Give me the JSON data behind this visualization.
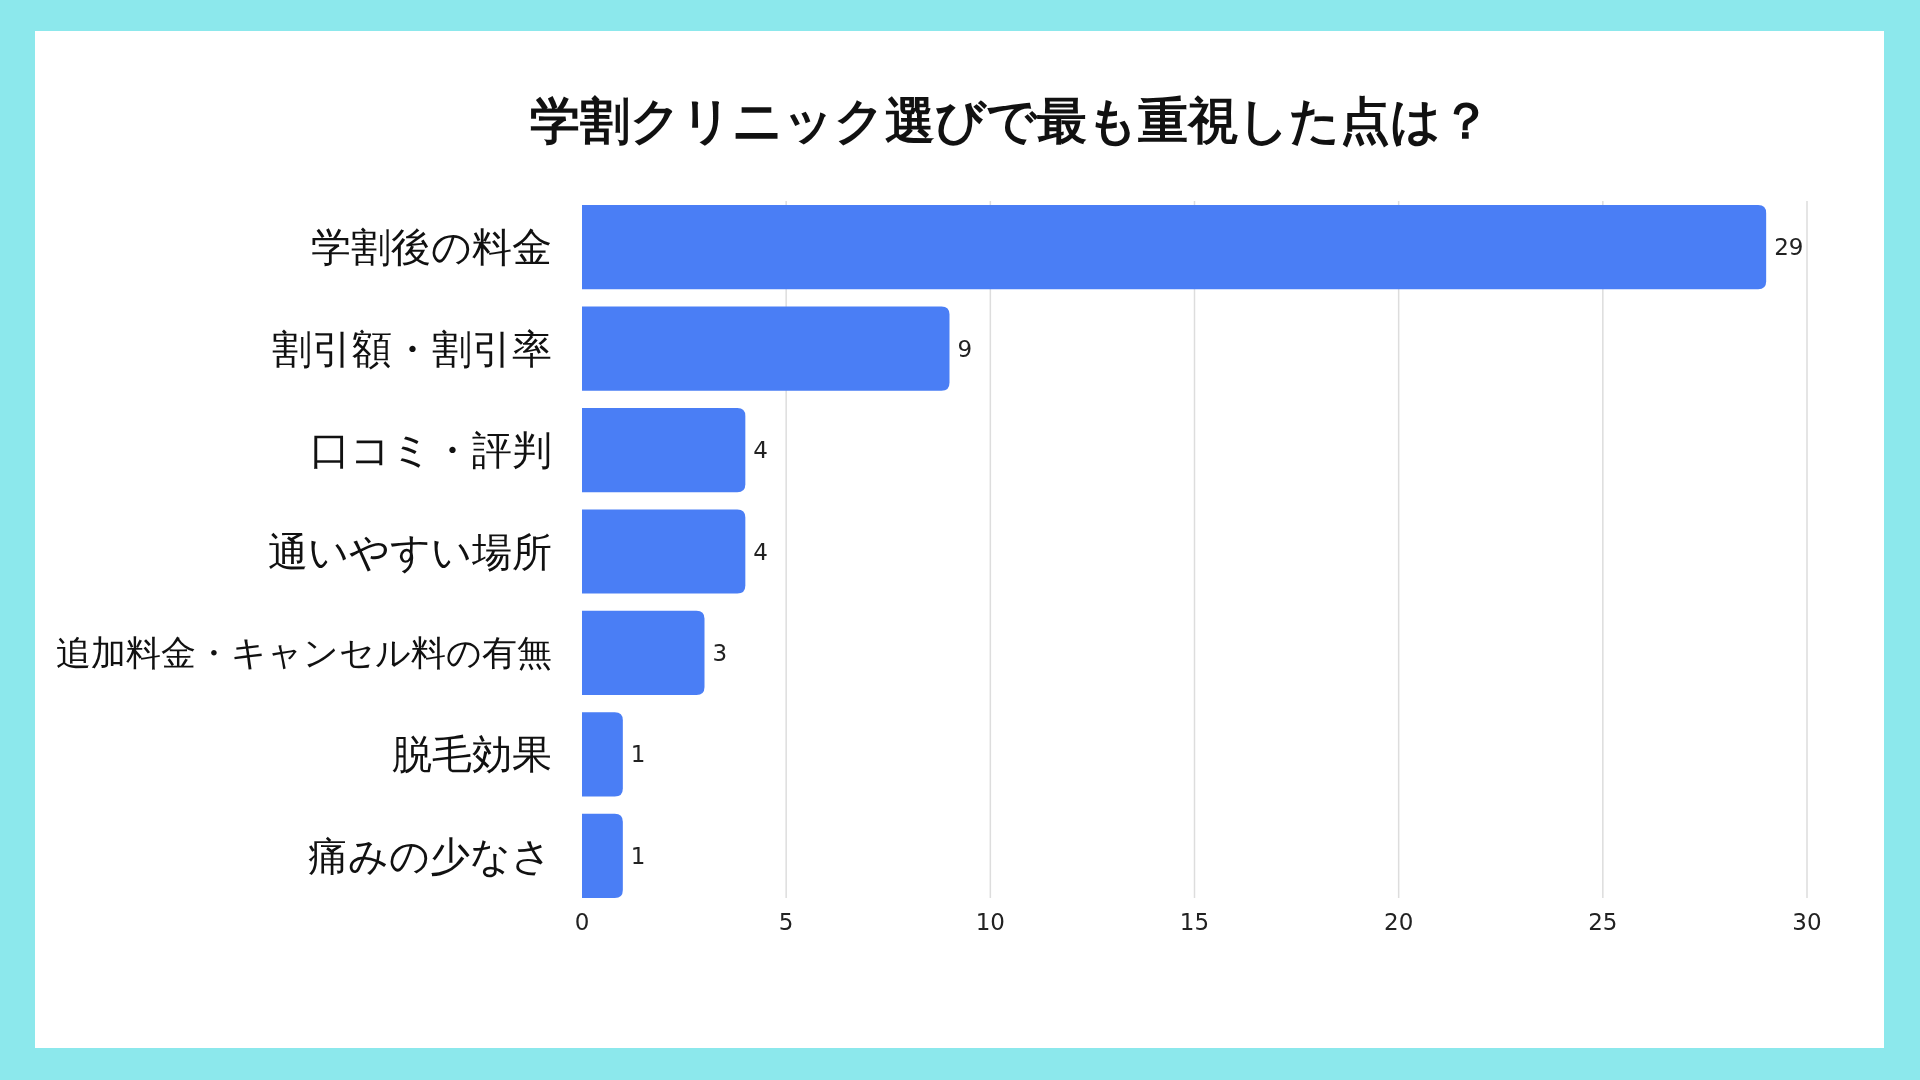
{
  "chart_data": {
    "type": "bar",
    "orientation": "horizontal",
    "title": "学割クリニック選びで最も重視した点は？",
    "categories": [
      "学割後の料金",
      "割引額・割引率",
      "口コミ・評判",
      "通いやすい場所",
      "追加料金・キャンセル料の有無",
      "脱毛効果",
      "痛みの少なさ"
    ],
    "values": [
      29,
      9,
      4,
      4,
      3,
      1,
      1
    ],
    "color": "#4a7ef5",
    "xlim": [
      0,
      30
    ],
    "xticks": [
      0,
      5,
      10,
      15,
      20,
      25,
      30
    ],
    "grid": "x",
    "data_labels": true
  }
}
